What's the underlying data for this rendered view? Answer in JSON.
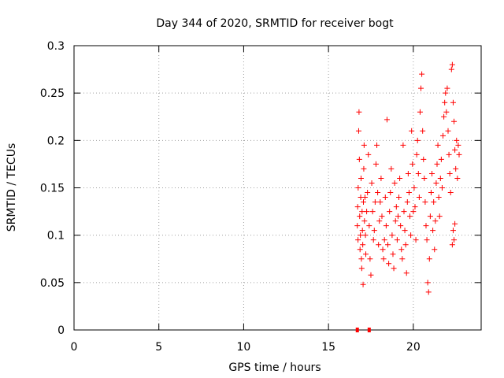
{
  "chart_data": {
    "type": "scatter",
    "title": "Day 344 of 2020, SRMTID for receiver bogt",
    "xlabel": "GPS time / hours",
    "ylabel": "SRMTID / TECUs",
    "xlim": [
      0,
      24
    ],
    "ylim": [
      0,
      0.3
    ],
    "x_ticks": [
      0,
      5,
      10,
      15,
      20
    ],
    "x_tick_labels": [
      "0",
      "5",
      "10",
      "15",
      "20"
    ],
    "y_ticks": [
      0,
      0.05,
      0.1,
      0.15,
      0.2,
      0.25,
      0.3
    ],
    "y_tick_labels": [
      "0",
      "0.05",
      "0.1",
      "0.15",
      "0.2",
      "0.25",
      "0.3"
    ],
    "grid": true,
    "marker": "+",
    "color": "#ff0000",
    "zero_markers_x": [
      16.7,
      17.4
    ],
    "series": [
      {
        "name": "SRMTID",
        "points": [
          [
            16.7,
            0.11
          ],
          [
            16.72,
            0.13
          ],
          [
            16.74,
            0.095
          ],
          [
            16.75,
            0.15
          ],
          [
            16.78,
            0.21
          ],
          [
            16.8,
            0.23
          ],
          [
            16.82,
            0.18
          ],
          [
            16.84,
            0.12
          ],
          [
            16.86,
            0.085
          ],
          [
            16.88,
            0.1
          ],
          [
            16.9,
            0.14
          ],
          [
            16.92,
            0.16
          ],
          [
            16.94,
            0.075
          ],
          [
            16.96,
            0.065
          ],
          [
            16.98,
            0.125
          ],
          [
            17.0,
            0.105
          ],
          [
            17.02,
            0.09
          ],
          [
            17.04,
            0.048
          ],
          [
            17.06,
            0.135
          ],
          [
            17.08,
            0.17
          ],
          [
            17.1,
            0.195
          ],
          [
            17.12,
            0.115
          ],
          [
            17.15,
            0.14
          ],
          [
            17.18,
            0.1
          ],
          [
            17.2,
            0.08
          ],
          [
            17.25,
            0.125
          ],
          [
            17.3,
            0.145
          ],
          [
            17.35,
            0.185
          ],
          [
            17.4,
            0.11
          ],
          [
            17.45,
            0.075
          ],
          [
            17.5,
            0.058
          ],
          [
            17.55,
            0.155
          ],
          [
            17.6,
            0.125
          ],
          [
            17.65,
            0.095
          ],
          [
            17.7,
            0.105
          ],
          [
            17.75,
            0.135
          ],
          [
            17.8,
            0.175
          ],
          [
            17.85,
            0.195
          ],
          [
            17.9,
            0.145
          ],
          [
            17.95,
            0.09
          ],
          [
            18.0,
            0.115
          ],
          [
            18.05,
            0.135
          ],
          [
            18.1,
            0.16
          ],
          [
            18.15,
            0.12
          ],
          [
            18.2,
            0.085
          ],
          [
            18.25,
            0.075
          ],
          [
            18.3,
            0.095
          ],
          [
            18.35,
            0.14
          ],
          [
            18.4,
            0.11
          ],
          [
            18.45,
            0.222
          ],
          [
            18.5,
            0.09
          ],
          [
            18.55,
            0.07
          ],
          [
            18.6,
            0.125
          ],
          [
            18.65,
            0.145
          ],
          [
            18.7,
            0.17
          ],
          [
            18.75,
            0.1
          ],
          [
            18.8,
            0.08
          ],
          [
            18.85,
            0.065
          ],
          [
            18.9,
            0.155
          ],
          [
            18.95,
            0.115
          ],
          [
            19.0,
            0.13
          ],
          [
            19.05,
            0.095
          ],
          [
            19.1,
            0.12
          ],
          [
            19.15,
            0.14
          ],
          [
            19.2,
            0.16
          ],
          [
            19.25,
            0.11
          ],
          [
            19.3,
            0.085
          ],
          [
            19.35,
            0.075
          ],
          [
            19.4,
            0.195
          ],
          [
            19.45,
            0.125
          ],
          [
            19.5,
            0.105
          ],
          [
            19.55,
            0.09
          ],
          [
            19.6,
            0.06
          ],
          [
            19.65,
            0.135
          ],
          [
            19.7,
            0.165
          ],
          [
            19.75,
            0.145
          ],
          [
            19.8,
            0.12
          ],
          [
            19.85,
            0.1
          ],
          [
            19.9,
            0.21
          ],
          [
            19.95,
            0.175
          ],
          [
            20.0,
            0.125
          ],
          [
            20.05,
            0.15
          ],
          [
            20.1,
            0.13
          ],
          [
            20.15,
            0.095
          ],
          [
            20.2,
            0.185
          ],
          [
            20.25,
            0.2
          ],
          [
            20.3,
            0.165
          ],
          [
            20.35,
            0.14
          ],
          [
            20.4,
            0.23
          ],
          [
            20.45,
            0.255
          ],
          [
            20.5,
            0.27
          ],
          [
            20.55,
            0.21
          ],
          [
            20.6,
            0.18
          ],
          [
            20.65,
            0.16
          ],
          [
            20.7,
            0.135
          ],
          [
            20.75,
            0.11
          ],
          [
            20.8,
            0.095
          ],
          [
            20.85,
            0.05
          ],
          [
            20.9,
            0.04
          ],
          [
            20.95,
            0.075
          ],
          [
            21.0,
            0.12
          ],
          [
            21.05,
            0.145
          ],
          [
            21.1,
            0.165
          ],
          [
            21.15,
            0.105
          ],
          [
            21.2,
            0.135
          ],
          [
            21.25,
            0.085
          ],
          [
            21.3,
            0.115
          ],
          [
            21.35,
            0.155
          ],
          [
            21.4,
            0.175
          ],
          [
            21.45,
            0.195
          ],
          [
            21.5,
            0.14
          ],
          [
            21.55,
            0.12
          ],
          [
            21.6,
            0.16
          ],
          [
            21.65,
            0.18
          ],
          [
            21.7,
            0.15
          ],
          [
            21.75,
            0.205
          ],
          [
            21.8,
            0.225
          ],
          [
            21.85,
            0.24
          ],
          [
            21.9,
            0.25
          ],
          [
            21.95,
            0.23
          ],
          [
            22.0,
            0.255
          ],
          [
            22.05,
            0.21
          ],
          [
            22.1,
            0.185
          ],
          [
            22.15,
            0.165
          ],
          [
            22.2,
            0.145
          ],
          [
            22.25,
            0.275
          ],
          [
            22.3,
            0.28
          ],
          [
            22.35,
            0.24
          ],
          [
            22.4,
            0.22
          ],
          [
            22.45,
            0.19
          ],
          [
            22.5,
            0.17
          ],
          [
            22.55,
            0.2
          ],
          [
            22.6,
            0.16
          ],
          [
            22.65,
            0.195
          ],
          [
            22.7,
            0.185
          ],
          [
            22.35,
            0.105
          ],
          [
            22.4,
            0.095
          ],
          [
            22.45,
            0.112
          ],
          [
            22.3,
            0.09
          ]
        ]
      }
    ]
  }
}
